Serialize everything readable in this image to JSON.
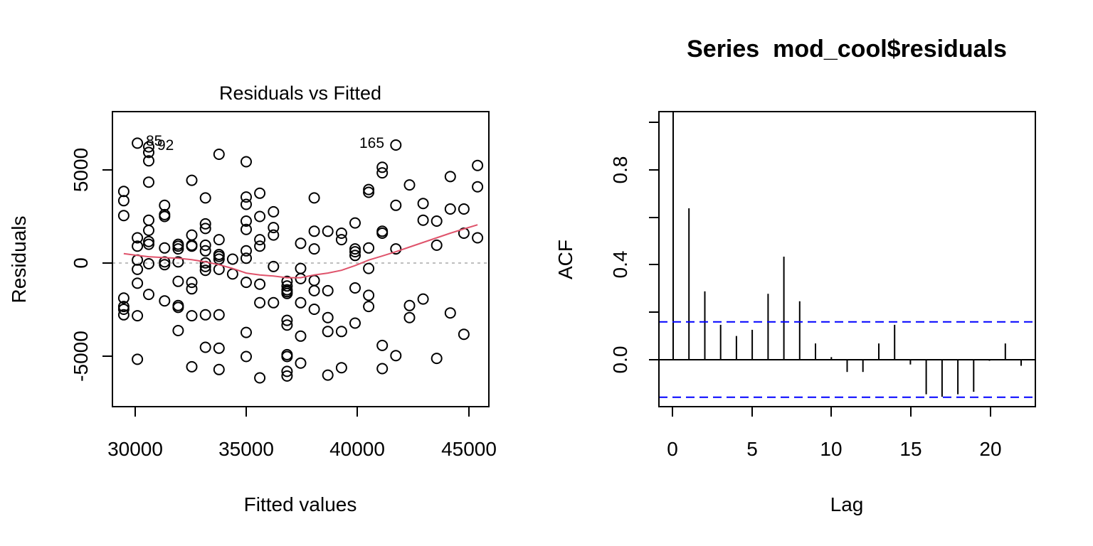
{
  "chart_data": [
    {
      "type": "scatter",
      "title": "Residuals vs Fitted",
      "xlabel": "Fitted values",
      "ylabel": "Residuals",
      "xlim": [
        29200,
        45800
      ],
      "ylim": [
        -7700,
        8200
      ],
      "xticks": [
        30000,
        35000,
        40000,
        45000
      ],
      "xtick_labels": [
        "30000",
        "35000",
        "40000",
        "45000"
      ],
      "yticks": [
        -5000,
        0,
        5000
      ],
      "ytick_labels": [
        "-5000",
        "0",
        "5000"
      ],
      "reference_line": 0,
      "colors": {
        "points": "#000000",
        "smoother": "#DF536B",
        "reference": "#BEBEBE"
      },
      "labeled_points": [
        {
          "label": "85",
          "x": 30300,
          "y": 6500
        },
        {
          "label": "92",
          "x": 30800,
          "y": 6300
        },
        {
          "label": "165",
          "x": 41700,
          "y": 6400
        }
      ],
      "points": [
        [
          29700,
          3900
        ],
        [
          29700,
          3400
        ],
        [
          29700,
          2600
        ],
        [
          29700,
          -1850
        ],
        [
          29700,
          -2300
        ],
        [
          29700,
          -2450
        ],
        [
          29700,
          -2750
        ],
        [
          30300,
          6500
        ],
        [
          30300,
          1400
        ],
        [
          30300,
          950
        ],
        [
          30300,
          200
        ],
        [
          30300,
          -300
        ],
        [
          30300,
          -1050
        ],
        [
          30300,
          -2800
        ],
        [
          30300,
          -5150
        ],
        [
          30800,
          6300
        ],
        [
          30800,
          6000
        ],
        [
          30800,
          5550
        ],
        [
          30800,
          4400
        ],
        [
          30800,
          2350
        ],
        [
          30800,
          1800
        ],
        [
          30800,
          1200
        ],
        [
          30800,
          1050
        ],
        [
          30800,
          0
        ],
        [
          30800,
          -1650
        ],
        [
          31500,
          3150
        ],
        [
          31500,
          2650
        ],
        [
          31500,
          2550
        ],
        [
          31500,
          850
        ],
        [
          31500,
          100
        ],
        [
          31500,
          -50
        ],
        [
          31500,
          -2000
        ],
        [
          32100,
          1050
        ],
        [
          32100,
          950
        ],
        [
          32100,
          800
        ],
        [
          32100,
          100
        ],
        [
          32100,
          -950
        ],
        [
          32100,
          -2250
        ],
        [
          32100,
          -2350
        ],
        [
          32100,
          -3600
        ],
        [
          32700,
          4500
        ],
        [
          32700,
          1550
        ],
        [
          32700,
          1000
        ],
        [
          32700,
          950
        ],
        [
          32700,
          -1000
        ],
        [
          32700,
          -1350
        ],
        [
          32700,
          -2800
        ],
        [
          32700,
          -5550
        ],
        [
          33300,
          3550
        ],
        [
          33300,
          2150
        ],
        [
          33300,
          1900
        ],
        [
          33300,
          1000
        ],
        [
          33300,
          700
        ],
        [
          33300,
          50
        ],
        [
          33300,
          -150
        ],
        [
          33300,
          -350
        ],
        [
          33300,
          -2750
        ],
        [
          33300,
          -4500
        ],
        [
          33900,
          5900
        ],
        [
          33900,
          1300
        ],
        [
          33900,
          500
        ],
        [
          33900,
          400
        ],
        [
          33900,
          250
        ],
        [
          33900,
          -300
        ],
        [
          33900,
          -2750
        ],
        [
          33900,
          -4550
        ],
        [
          33900,
          -5700
        ],
        [
          34500,
          250
        ],
        [
          34500,
          -550
        ],
        [
          35100,
          5500
        ],
        [
          35100,
          3600
        ],
        [
          35100,
          3200
        ],
        [
          35100,
          2300
        ],
        [
          35100,
          1850
        ],
        [
          35100,
          700
        ],
        [
          35100,
          300
        ],
        [
          35100,
          -1000
        ],
        [
          35100,
          -3700
        ],
        [
          35100,
          -5000
        ],
        [
          35700,
          3800
        ],
        [
          35700,
          2550
        ],
        [
          35700,
          1300
        ],
        [
          35700,
          950
        ],
        [
          35700,
          -1100
        ],
        [
          35700,
          -2100
        ],
        [
          35700,
          -6150
        ],
        [
          36300,
          2800
        ],
        [
          36300,
          1950
        ],
        [
          36300,
          1550
        ],
        [
          36300,
          -150
        ],
        [
          36300,
          -2100
        ],
        [
          36900,
          -950
        ],
        [
          36900,
          -1200
        ],
        [
          36900,
          -1400
        ],
        [
          36900,
          -1500
        ],
        [
          36900,
          -1600
        ],
        [
          36900,
          -3050
        ],
        [
          36900,
          -3300
        ],
        [
          36900,
          -4900
        ],
        [
          36900,
          -5000
        ],
        [
          36900,
          -5800
        ],
        [
          36900,
          -6050
        ],
        [
          37500,
          1100
        ],
        [
          37500,
          -250
        ],
        [
          37500,
          -800
        ],
        [
          37500,
          -2100
        ],
        [
          37500,
          -3900
        ],
        [
          37500,
          -5350
        ],
        [
          38100,
          3550
        ],
        [
          38100,
          1750
        ],
        [
          38100,
          800
        ],
        [
          38100,
          -900
        ],
        [
          38100,
          -1450
        ],
        [
          38100,
          -2450
        ],
        [
          38700,
          1750
        ],
        [
          38700,
          -1450
        ],
        [
          38700,
          -2900
        ],
        [
          38700,
          -3650
        ],
        [
          38700,
          -6000
        ],
        [
          39300,
          1650
        ],
        [
          39300,
          1300
        ],
        [
          39300,
          -3650
        ],
        [
          39300,
          -5600
        ],
        [
          39900,
          2200
        ],
        [
          39900,
          800
        ],
        [
          39900,
          650
        ],
        [
          39900,
          450
        ],
        [
          39900,
          -1300
        ],
        [
          39900,
          -3200
        ],
        [
          40500,
          4000
        ],
        [
          40500,
          3850
        ],
        [
          40500,
          850
        ],
        [
          40500,
          -250
        ],
        [
          40500,
          -1700
        ],
        [
          40500,
          -2300
        ],
        [
          41100,
          5200
        ],
        [
          41100,
          4900
        ],
        [
          41100,
          1750
        ],
        [
          41100,
          1650
        ],
        [
          41100,
          -4400
        ],
        [
          41100,
          -5650
        ],
        [
          41700,
          6400
        ],
        [
          41700,
          3150
        ],
        [
          41700,
          800
        ],
        [
          41700,
          -4950
        ],
        [
          42300,
          4250
        ],
        [
          42300,
          -2250
        ],
        [
          42300,
          -2900
        ],
        [
          42900,
          3250
        ],
        [
          42900,
          2350
        ],
        [
          42900,
          -1900
        ],
        [
          43500,
          2300
        ],
        [
          43500,
          1000
        ],
        [
          43500,
          -5100
        ],
        [
          44100,
          4700
        ],
        [
          44100,
          2950
        ],
        [
          44100,
          -2650
        ],
        [
          44700,
          2950
        ],
        [
          44700,
          1650
        ],
        [
          44700,
          -3800
        ],
        [
          45300,
          5300
        ],
        [
          45300,
          4150
        ],
        [
          45300,
          1400
        ]
      ],
      "smoother": [
        [
          29700,
          550
        ],
        [
          30300,
          450
        ],
        [
          30800,
          380
        ],
        [
          31500,
          330
        ],
        [
          32100,
          300
        ],
        [
          32700,
          220
        ],
        [
          33300,
          100
        ],
        [
          33900,
          -50
        ],
        [
          34500,
          -250
        ],
        [
          35100,
          -500
        ],
        [
          35700,
          -600
        ],
        [
          36300,
          -660
        ],
        [
          36900,
          -750
        ],
        [
          37500,
          -750
        ],
        [
          38100,
          -600
        ],
        [
          38700,
          -500
        ],
        [
          39300,
          -350
        ],
        [
          39900,
          -100
        ],
        [
          40500,
          200
        ],
        [
          41100,
          420
        ],
        [
          41700,
          650
        ],
        [
          42300,
          900
        ],
        [
          42900,
          1150
        ],
        [
          43500,
          1400
        ],
        [
          44100,
          1650
        ],
        [
          44700,
          1880
        ],
        [
          45300,
          2100
        ]
      ]
    },
    {
      "type": "bar",
      "title": "Series  mod_cool$residuals",
      "xlabel": "Lag",
      "ylabel": "ACF",
      "xlim": [
        -0.9,
        22.9
      ],
      "ylim": [
        -0.19,
        1.0
      ],
      "xticks": [
        0,
        5,
        10,
        15,
        20
      ],
      "xtick_labels": [
        "0",
        "5",
        "10",
        "15",
        "20"
      ],
      "yticks": [
        0.0,
        0.4,
        0.8
      ],
      "ytick_labels": [
        "0.0",
        "0.4",
        "0.8"
      ],
      "confidence_bound": 0.152,
      "colors": {
        "bars": "#000000",
        "confidence": "#0000FF"
      },
      "lags": [
        0,
        1,
        2,
        3,
        4,
        5,
        6,
        7,
        8,
        9,
        10,
        11,
        12,
        13,
        14,
        15,
        16,
        17,
        18,
        19,
        20,
        21,
        22
      ],
      "values": [
        1.0,
        0.61,
        0.275,
        0.14,
        0.095,
        0.12,
        0.265,
        0.415,
        0.235,
        0.065,
        0.01,
        -0.05,
        -0.05,
        0.065,
        0.14,
        -0.02,
        -0.14,
        -0.15,
        -0.14,
        -0.13,
        -0.005,
        0.065,
        -0.025
      ]
    }
  ]
}
